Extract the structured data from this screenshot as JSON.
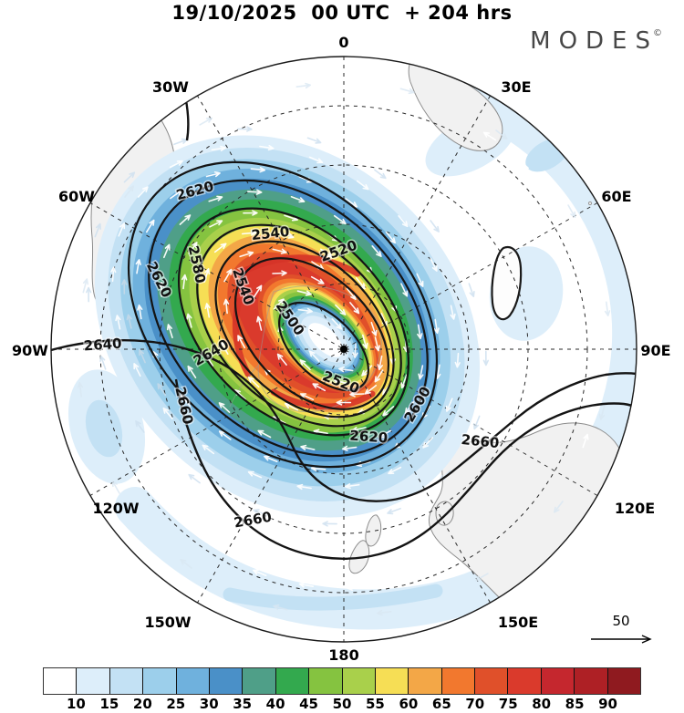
{
  "header": {
    "title": "19/10/2025  00 UTC  + 204 hrs"
  },
  "logo": {
    "text": "MODES",
    "mark": "©"
  },
  "map": {
    "longitude_labels": [
      {
        "text": "0"
      },
      {
        "text": "30E"
      },
      {
        "text": "60E"
      },
      {
        "text": "90E"
      },
      {
        "text": "120E"
      },
      {
        "text": "150E"
      },
      {
        "text": "180"
      },
      {
        "text": "150W"
      },
      {
        "text": "120W"
      },
      {
        "text": "90W"
      },
      {
        "text": "60W"
      },
      {
        "text": "30W"
      }
    ],
    "contour_labels": [
      {
        "text": "2620"
      },
      {
        "text": "2620"
      },
      {
        "text": "2580"
      },
      {
        "text": "2540"
      },
      {
        "text": "2540"
      },
      {
        "text": "2520"
      },
      {
        "text": "2500"
      },
      {
        "text": "2520"
      },
      {
        "text": "2600"
      },
      {
        "text": "2620"
      },
      {
        "text": "2640"
      },
      {
        "text": "2640"
      },
      {
        "text": "2660"
      },
      {
        "text": "2660"
      },
      {
        "text": "2660"
      }
    ],
    "wind_reference_label": "50"
  },
  "colorbar": {
    "tick_labels": [
      "10",
      "15",
      "20",
      "25",
      "30",
      "35",
      "40",
      "45",
      "50",
      "55",
      "60",
      "65",
      "70",
      "75",
      "80",
      "85",
      "90"
    ],
    "cell_colors": [
      "#ffffff",
      "#ddeefa",
      "#c3e1f4",
      "#9ccfeb",
      "#6fb1dd",
      "#4a90c8",
      "#4f9f88",
      "#33a94e",
      "#85c340",
      "#a9d04b",
      "#f6de55",
      "#f3a747",
      "#f2782e",
      "#e0502a",
      "#da3a2c",
      "#c5272e",
      "#ae2025",
      "#8f1a1f"
    ]
  },
  "chart_data": {
    "type": "heatmap",
    "title": "19/10/2025 00 UTC + 204 hrs",
    "description": "South polar stereographic chart: shaded wind-speed style field (levels 10-90, step 5) forming an elliptical jet ring around the polar vortex (maximum 70-80 in the NW sector), overlaid black geopotential-height-style contours (interval 20, labeled 2500-2660), white flow arrows circulating clockwise, dashed 30-degree graticule, black pole dot, and a reference arrow of value 50",
    "projection": "polar stereographic, 0 at top, 90E right, 180 bottom, 90W left",
    "longitude_spacing_deg": 30,
    "graticule_labels": [
      "0",
      "30E",
      "60E",
      "90E",
      "120E",
      "150E",
      "180",
      "150W",
      "120W",
      "90W",
      "60W",
      "30W"
    ],
    "shading_levels": [
      10,
      15,
      20,
      25,
      30,
      35,
      40,
      45,
      50,
      55,
      60,
      65,
      70,
      75,
      80,
      85,
      90
    ],
    "shading_colors": [
      "#ffffff",
      "#ddeefa",
      "#c3e1f4",
      "#9ccfeb",
      "#6fb1dd",
      "#4a90c8",
      "#4f9f88",
      "#33a94e",
      "#85c340",
      "#a9d04b",
      "#f6de55",
      "#f3a747",
      "#f2782e",
      "#e0502a",
      "#da3a2c",
      "#c5272e",
      "#ae2025",
      "#8f1a1f"
    ],
    "contour_levels_labeled": [
      2500,
      2520,
      2540,
      2580,
      2600,
      2620,
      2640,
      2660
    ],
    "contour_interval": 20,
    "contour_label_instances": [
      "2620",
      "2620",
      "2580",
      "2540",
      "2540",
      "2520",
      "2500",
      "2520",
      "2600",
      "2620",
      "2640",
      "2640",
      "2660",
      "2660",
      "2660"
    ],
    "wind_reference_value": 50,
    "center_marker": "black dot at pole",
    "legend_position": "bottom horizontal colorbar"
  }
}
